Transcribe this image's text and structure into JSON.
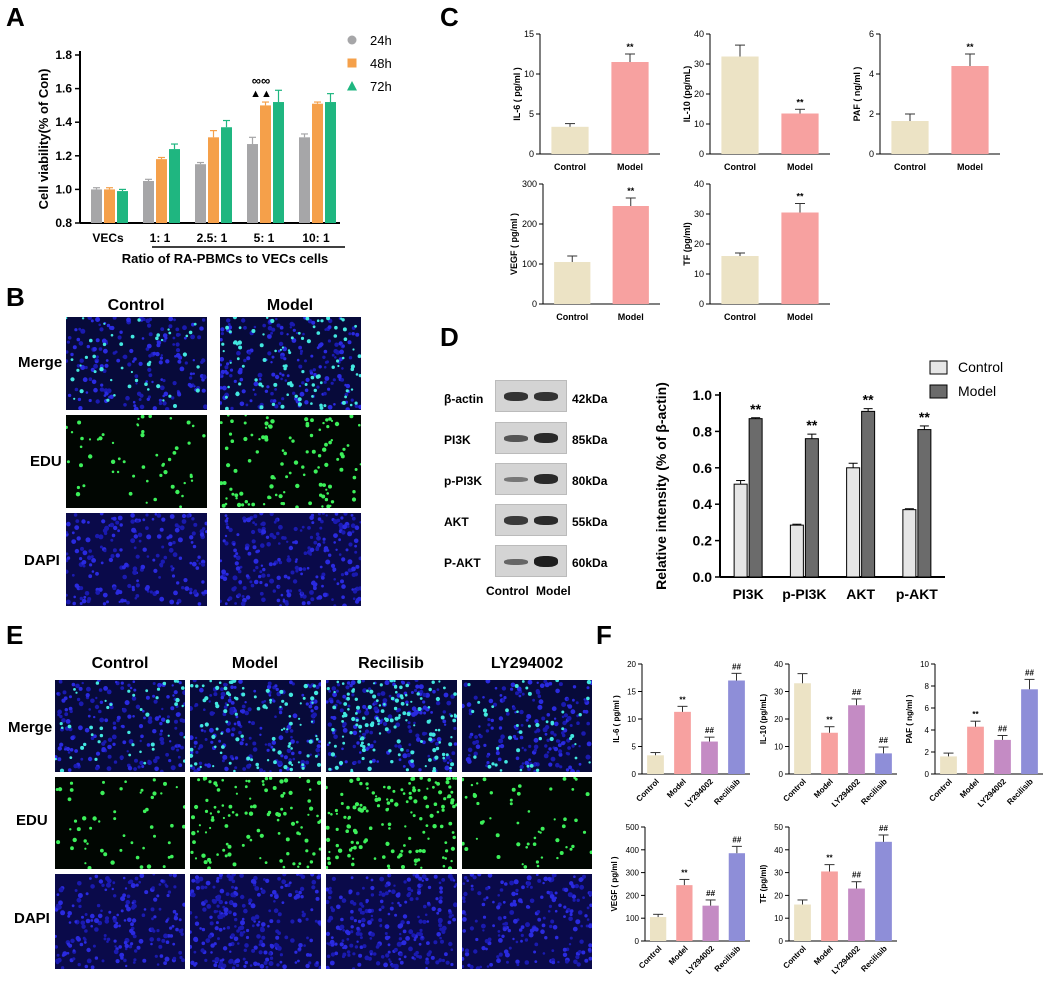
{
  "panel_labels": {
    "a": "A",
    "b": "B",
    "c": "C",
    "d": "D",
    "e": "E",
    "f": "F"
  },
  "colors": {
    "t24": "#a6a6a8",
    "t48": "#f5a04a",
    "t72": "#1fb680",
    "control": "#ece3c5",
    "model": "#f7a1a0",
    "ly294002": "#c48bc4",
    "recilisib": "#8e8ed8",
    "wb_control": "#e6e6e6",
    "wb_model": "#6b6b6b"
  },
  "panel_b": {
    "columns": [
      "Control",
      "Model"
    ],
    "rows": [
      "Merge",
      "EDU",
      "DAPI"
    ]
  },
  "panel_e": {
    "columns": [
      "Control",
      "Model",
      "Recilisib",
      "LY294002"
    ],
    "rows": [
      "Merge",
      "EDU",
      "DAPI"
    ]
  },
  "panel_d_blot": {
    "proteins": [
      "β-actin",
      "PI3K",
      "p-PI3K",
      "AKT",
      "P-AKT"
    ],
    "kda": [
      "42kDa",
      "85kDa",
      "80kDa",
      "55kDa",
      "60kDa"
    ],
    "lanes": [
      "Control",
      "Model"
    ]
  },
  "chart_data": [
    {
      "id": "A",
      "type": "bar",
      "ylabel": "Cell viability(% of Con)",
      "xlabel": "Ratio of RA-PBMCs to VECs  cells",
      "categories": [
        "VECs",
        "1: 1",
        "2.5: 1",
        "5: 1",
        "10: 1"
      ],
      "ylim": [
        0.8,
        1.8
      ],
      "yticks": [
        "0.8",
        "1.0",
        "1.2",
        "1.4",
        "1.6",
        "1.8"
      ],
      "series": [
        {
          "name": "24h",
          "values": [
            1.0,
            1.05,
            1.15,
            1.27,
            1.31
          ],
          "errors": [
            0.01,
            0.01,
            0.01,
            0.04,
            0.02
          ]
        },
        {
          "name": "48h",
          "values": [
            1.0,
            1.18,
            1.31,
            1.5,
            1.51
          ],
          "errors": [
            0.01,
            0.01,
            0.04,
            0.02,
            0.01
          ]
        },
        {
          "name": "72h",
          "values": [
            0.99,
            1.24,
            1.37,
            1.52,
            1.52
          ],
          "errors": [
            0.01,
            0.03,
            0.04,
            0.07,
            0.05
          ]
        }
      ],
      "annotations": {
        "circles": "∞∞",
        "triangles": "▲▲"
      }
    },
    {
      "id": "C1",
      "type": "bar",
      "ylabel": "IL-6 ( pg/ml )",
      "categories": [
        "Control",
        "Model"
      ],
      "values": [
        3.4,
        11.5
      ],
      "errors": [
        0.4,
        1.0
      ],
      "ylim": [
        0,
        15
      ],
      "yticks": [
        "0",
        "5",
        "10",
        "15"
      ],
      "sig": [
        "",
        "**"
      ]
    },
    {
      "id": "C2",
      "type": "bar",
      "ylabel": "IL-10 (pg/mL)",
      "categories": [
        "Control",
        "Model"
      ],
      "values": [
        32.5,
        13.5
      ],
      "errors": [
        3.8,
        1.4
      ],
      "ylim": [
        0,
        40
      ],
      "yticks": [
        "0",
        "10",
        "20",
        "30",
        "40"
      ],
      "sig": [
        "",
        "**"
      ]
    },
    {
      "id": "C3",
      "type": "bar",
      "ylabel": "PAF ( ng/ml )",
      "categories": [
        "Control",
        "Model"
      ],
      "values": [
        1.65,
        4.4
      ],
      "errors": [
        0.35,
        0.6
      ],
      "ylim": [
        0,
        6
      ],
      "yticks": [
        "0",
        "2",
        "4",
        "6"
      ],
      "sig": [
        "",
        "**"
      ]
    },
    {
      "id": "C4",
      "type": "bar",
      "ylabel": "VEGF ( pg/ml )",
      "categories": [
        "Control",
        "Model"
      ],
      "values": [
        105,
        245
      ],
      "errors": [
        15,
        20
      ],
      "ylim": [
        0,
        300
      ],
      "yticks": [
        "0",
        "100",
        "200",
        "300"
      ],
      "sig": [
        "",
        "**"
      ]
    },
    {
      "id": "C5",
      "type": "bar",
      "ylabel": "TF (pg/ml)",
      "categories": [
        "Control",
        "Model"
      ],
      "values": [
        16,
        30.5
      ],
      "errors": [
        1.0,
        3.0
      ],
      "ylim": [
        0,
        40
      ],
      "yticks": [
        "0",
        "10",
        "20",
        "30",
        "40"
      ],
      "sig": [
        "",
        "**"
      ]
    },
    {
      "id": "D",
      "type": "bar",
      "ylabel": "Relative intensity (% of β-actin)",
      "categories": [
        "PI3K",
        "p-PI3K",
        "AKT",
        "p-AKT"
      ],
      "ylim": [
        0,
        1.0
      ],
      "yticks": [
        "0.0",
        "0.2",
        "0.4",
        "0.6",
        "0.8",
        "1.0"
      ],
      "series": [
        {
          "name": "Control",
          "values": [
            0.51,
            0.285,
            0.6,
            0.37
          ],
          "errors": [
            0.02,
            0.005,
            0.025,
            0.005
          ]
        },
        {
          "name": "Model",
          "values": [
            0.87,
            0.76,
            0.91,
            0.81
          ],
          "errors": [
            0.005,
            0.025,
            0.015,
            0.02
          ]
        }
      ],
      "sig": "**"
    },
    {
      "id": "F1",
      "type": "bar",
      "ylabel": "IL-6 ( pg/ml )",
      "categories": [
        "Control",
        "Model",
        "LY294002",
        "Recilisib"
      ],
      "values": [
        3.4,
        11.3,
        5.9,
        17.0
      ],
      "errors": [
        0.5,
        1.0,
        0.8,
        1.3
      ],
      "ylim": [
        0,
        20
      ],
      "yticks": [
        "0",
        "5",
        "10",
        "15",
        "20"
      ],
      "sig": [
        "",
        "**",
        "##",
        "##"
      ]
    },
    {
      "id": "F2",
      "type": "bar",
      "ylabel": "IL-10 (pg/mL)",
      "categories": [
        "Control",
        "Model",
        "LY294002",
        "Recilisib"
      ],
      "values": [
        33.0,
        15.0,
        25.0,
        7.5
      ],
      "errors": [
        3.5,
        2.2,
        2.3,
        2.3
      ],
      "ylim": [
        0,
        40
      ],
      "yticks": [
        "0",
        "10",
        "20",
        "30",
        "40"
      ],
      "sig": [
        "",
        "**",
        "##",
        "##"
      ]
    },
    {
      "id": "F3",
      "type": "bar",
      "ylabel": "PAF ( ng/ml )",
      "categories": [
        "Control",
        "Model",
        "LY294002",
        "Recilisib"
      ],
      "values": [
        1.6,
        4.3,
        3.1,
        7.7
      ],
      "errors": [
        0.3,
        0.5,
        0.4,
        0.9
      ],
      "ylim": [
        0,
        10
      ],
      "yticks": [
        "0",
        "2",
        "4",
        "6",
        "8",
        "10"
      ],
      "sig": [
        "",
        "**",
        "##",
        "##"
      ]
    },
    {
      "id": "F4",
      "type": "bar",
      "ylabel": "VEGF ( pg/ml )",
      "categories": [
        "Control",
        "Model",
        "LY294002",
        "Recilisib"
      ],
      "values": [
        105,
        245,
        155,
        385
      ],
      "errors": [
        12,
        25,
        25,
        30
      ],
      "ylim": [
        0,
        500
      ],
      "yticks": [
        "0",
        "100",
        "200",
        "300",
        "400",
        "500"
      ],
      "sig": [
        "",
        "**",
        "##",
        "##"
      ]
    },
    {
      "id": "F5",
      "type": "bar",
      "ylabel": "TF (pg/ml)",
      "categories": [
        "Control",
        "Model",
        "LY294002",
        "Recilisib"
      ],
      "values": [
        16,
        30.5,
        23,
        43.5
      ],
      "errors": [
        2,
        3,
        3,
        3
      ],
      "ylim": [
        0,
        50
      ],
      "yticks": [
        "0",
        "10",
        "20",
        "30",
        "40",
        "50"
      ],
      "sig": [
        "",
        "**",
        "##",
        "##"
      ]
    }
  ]
}
